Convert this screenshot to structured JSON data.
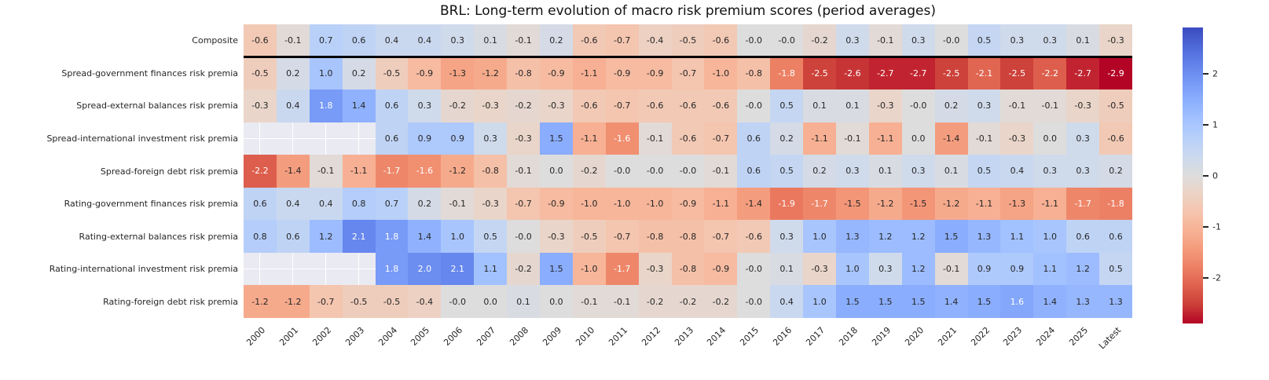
{
  "chart_data": {
    "type": "heatmap",
    "title": "BRL: Long-term evolution of macro risk premium scores (period averages)",
    "columns": [
      "2000",
      "2001",
      "2002",
      "2003",
      "2004",
      "2005",
      "2006",
      "2007",
      "2008",
      "2009",
      "2010",
      "2011",
      "2012",
      "2013",
      "2014",
      "2015",
      "2016",
      "2017",
      "2018",
      "2019",
      "2020",
      "2021",
      "2022",
      "2023",
      "2024",
      "2025",
      "Latest"
    ],
    "rows": [
      {
        "label": "Composite",
        "values": [
          "-0.6",
          "-0.1",
          "0.7",
          "0.6",
          "0.4",
          "0.4",
          "0.3",
          "0.1",
          "-0.1",
          "0.2",
          "-0.6",
          "-0.7",
          "-0.4",
          "-0.5",
          "-0.6",
          "-0.0",
          "-0.0",
          "-0.2",
          "0.3",
          "-0.1",
          "0.3",
          "-0.0",
          "0.5",
          "0.3",
          "0.3",
          "0.1",
          "-0.3"
        ]
      },
      {
        "label": "Spread-government finances risk premia",
        "values": [
          "-0.5",
          "0.2",
          "1.0",
          "0.2",
          "-0.5",
          "-0.9",
          "-1.3",
          "-1.2",
          "-0.8",
          "-0.9",
          "-1.1",
          "-0.9",
          "-0.9",
          "-0.7",
          "-1.0",
          "-0.8",
          "-1.8",
          "-2.5",
          "-2.6",
          "-2.7",
          "-2.7",
          "-2.5",
          "-2.1",
          "-2.5",
          "-2.2",
          "-2.7",
          "-2.9"
        ]
      },
      {
        "label": "Spread-external balances risk premia",
        "values": [
          "-0.3",
          "0.4",
          "1.8",
          "1.4",
          "0.6",
          "0.3",
          "-0.2",
          "-0.3",
          "-0.2",
          "-0.3",
          "-0.6",
          "-0.7",
          "-0.6",
          "-0.6",
          "-0.6",
          "-0.0",
          "0.5",
          "0.1",
          "0.1",
          "-0.3",
          "-0.0",
          "0.2",
          "0.3",
          "-0.1",
          "-0.1",
          "-0.3",
          "-0.5"
        ]
      },
      {
        "label": "Spread-international investment risk premia",
        "values": [
          null,
          null,
          null,
          null,
          "0.6",
          "0.9",
          "0.9",
          "0.3",
          "-0.3",
          "1.5",
          "-1.1",
          "-1.6",
          "-0.1",
          "-0.6",
          "-0.7",
          "0.6",
          "0.2",
          "-1.1",
          "-0.1",
          "-1.1",
          "0.0",
          "-1.4",
          "-0.1",
          "-0.3",
          "0.0",
          "0.3",
          "-0.6"
        ]
      },
      {
        "label": "Spread-foreign debt risk premia",
        "values": [
          "-2.2",
          "-1.4",
          "-0.1",
          "-1.1",
          "-1.7",
          "-1.6",
          "-1.2",
          "-0.8",
          "-0.1",
          "0.0",
          "-0.2",
          "-0.0",
          "-0.0",
          "-0.0",
          "-0.1",
          "0.6",
          "0.5",
          "0.2",
          "0.3",
          "0.1",
          "0.3",
          "0.1",
          "0.5",
          "0.4",
          "0.3",
          "0.3",
          "0.2"
        ]
      },
      {
        "label": "Rating-government finances risk premia",
        "values": [
          "0.6",
          "0.4",
          "0.4",
          "0.8",
          "0.7",
          "0.2",
          "-0.1",
          "-0.3",
          "-0.7",
          "-0.9",
          "-1.0",
          "-1.0",
          "-1.0",
          "-0.9",
          "-1.1",
          "-1.4",
          "-1.9",
          "-1.7",
          "-1.5",
          "-1.2",
          "-1.5",
          "-1.2",
          "-1.1",
          "-1.3",
          "-1.1",
          "-1.7",
          "-1.8"
        ]
      },
      {
        "label": "Rating-external balances risk premia",
        "values": [
          "0.8",
          "0.6",
          "1.2",
          "2.1",
          "1.8",
          "1.4",
          "1.0",
          "0.5",
          "-0.0",
          "-0.3",
          "-0.5",
          "-0.7",
          "-0.8",
          "-0.8",
          "-0.7",
          "-0.6",
          "0.3",
          "1.0",
          "1.3",
          "1.2",
          "1.2",
          "1.5",
          "1.3",
          "1.1",
          "1.0",
          "0.6",
          "0.6"
        ]
      },
      {
        "label": "Rating-international investment risk premia",
        "values": [
          null,
          null,
          null,
          null,
          "1.8",
          "2.0",
          "2.1",
          "1.1",
          "-0.2",
          "1.5",
          "-1.0",
          "-1.7",
          "-0.3",
          "-0.8",
          "-0.9",
          "-0.0",
          "0.1",
          "-0.3",
          "1.0",
          "0.3",
          "1.2",
          "-0.1",
          "0.9",
          "0.9",
          "1.1",
          "1.2",
          "0.5"
        ]
      },
      {
        "label": "Rating-foreign debt risk premia",
        "values": [
          "-1.2",
          "-1.2",
          "-0.7",
          "-0.5",
          "-0.5",
          "-0.4",
          "-0.0",
          "0.0",
          "0.1",
          "0.0",
          "-0.1",
          "-0.1",
          "-0.2",
          "-0.2",
          "-0.2",
          "-0.0",
          "0.4",
          "1.0",
          "1.5",
          "1.5",
          "1.5",
          "1.4",
          "1.5",
          "1.6",
          "1.4",
          "1.3",
          "1.3"
        ]
      }
    ],
    "separator_below_row": "Composite",
    "colormap": "coolwarm_r",
    "vmin": -2.9,
    "vmax": 2.9,
    "center": 0,
    "colorbar": {
      "position": "right",
      "tick_values": [
        2,
        1,
        0,
        -1,
        -2
      ],
      "tick_labels": [
        "2",
        "1",
        "0",
        "-1",
        "-2"
      ]
    },
    "colors": {
      "positive_end": "#3b4cc0",
      "midpoint": "#dddddd",
      "negative_end": "#b40426",
      "empty_cell": "#eaeaf2",
      "text_dark": "#262626",
      "text_light": "#ffffff",
      "separator": "#000000"
    },
    "grid": false,
    "xlabel": "",
    "ylabel": ""
  }
}
